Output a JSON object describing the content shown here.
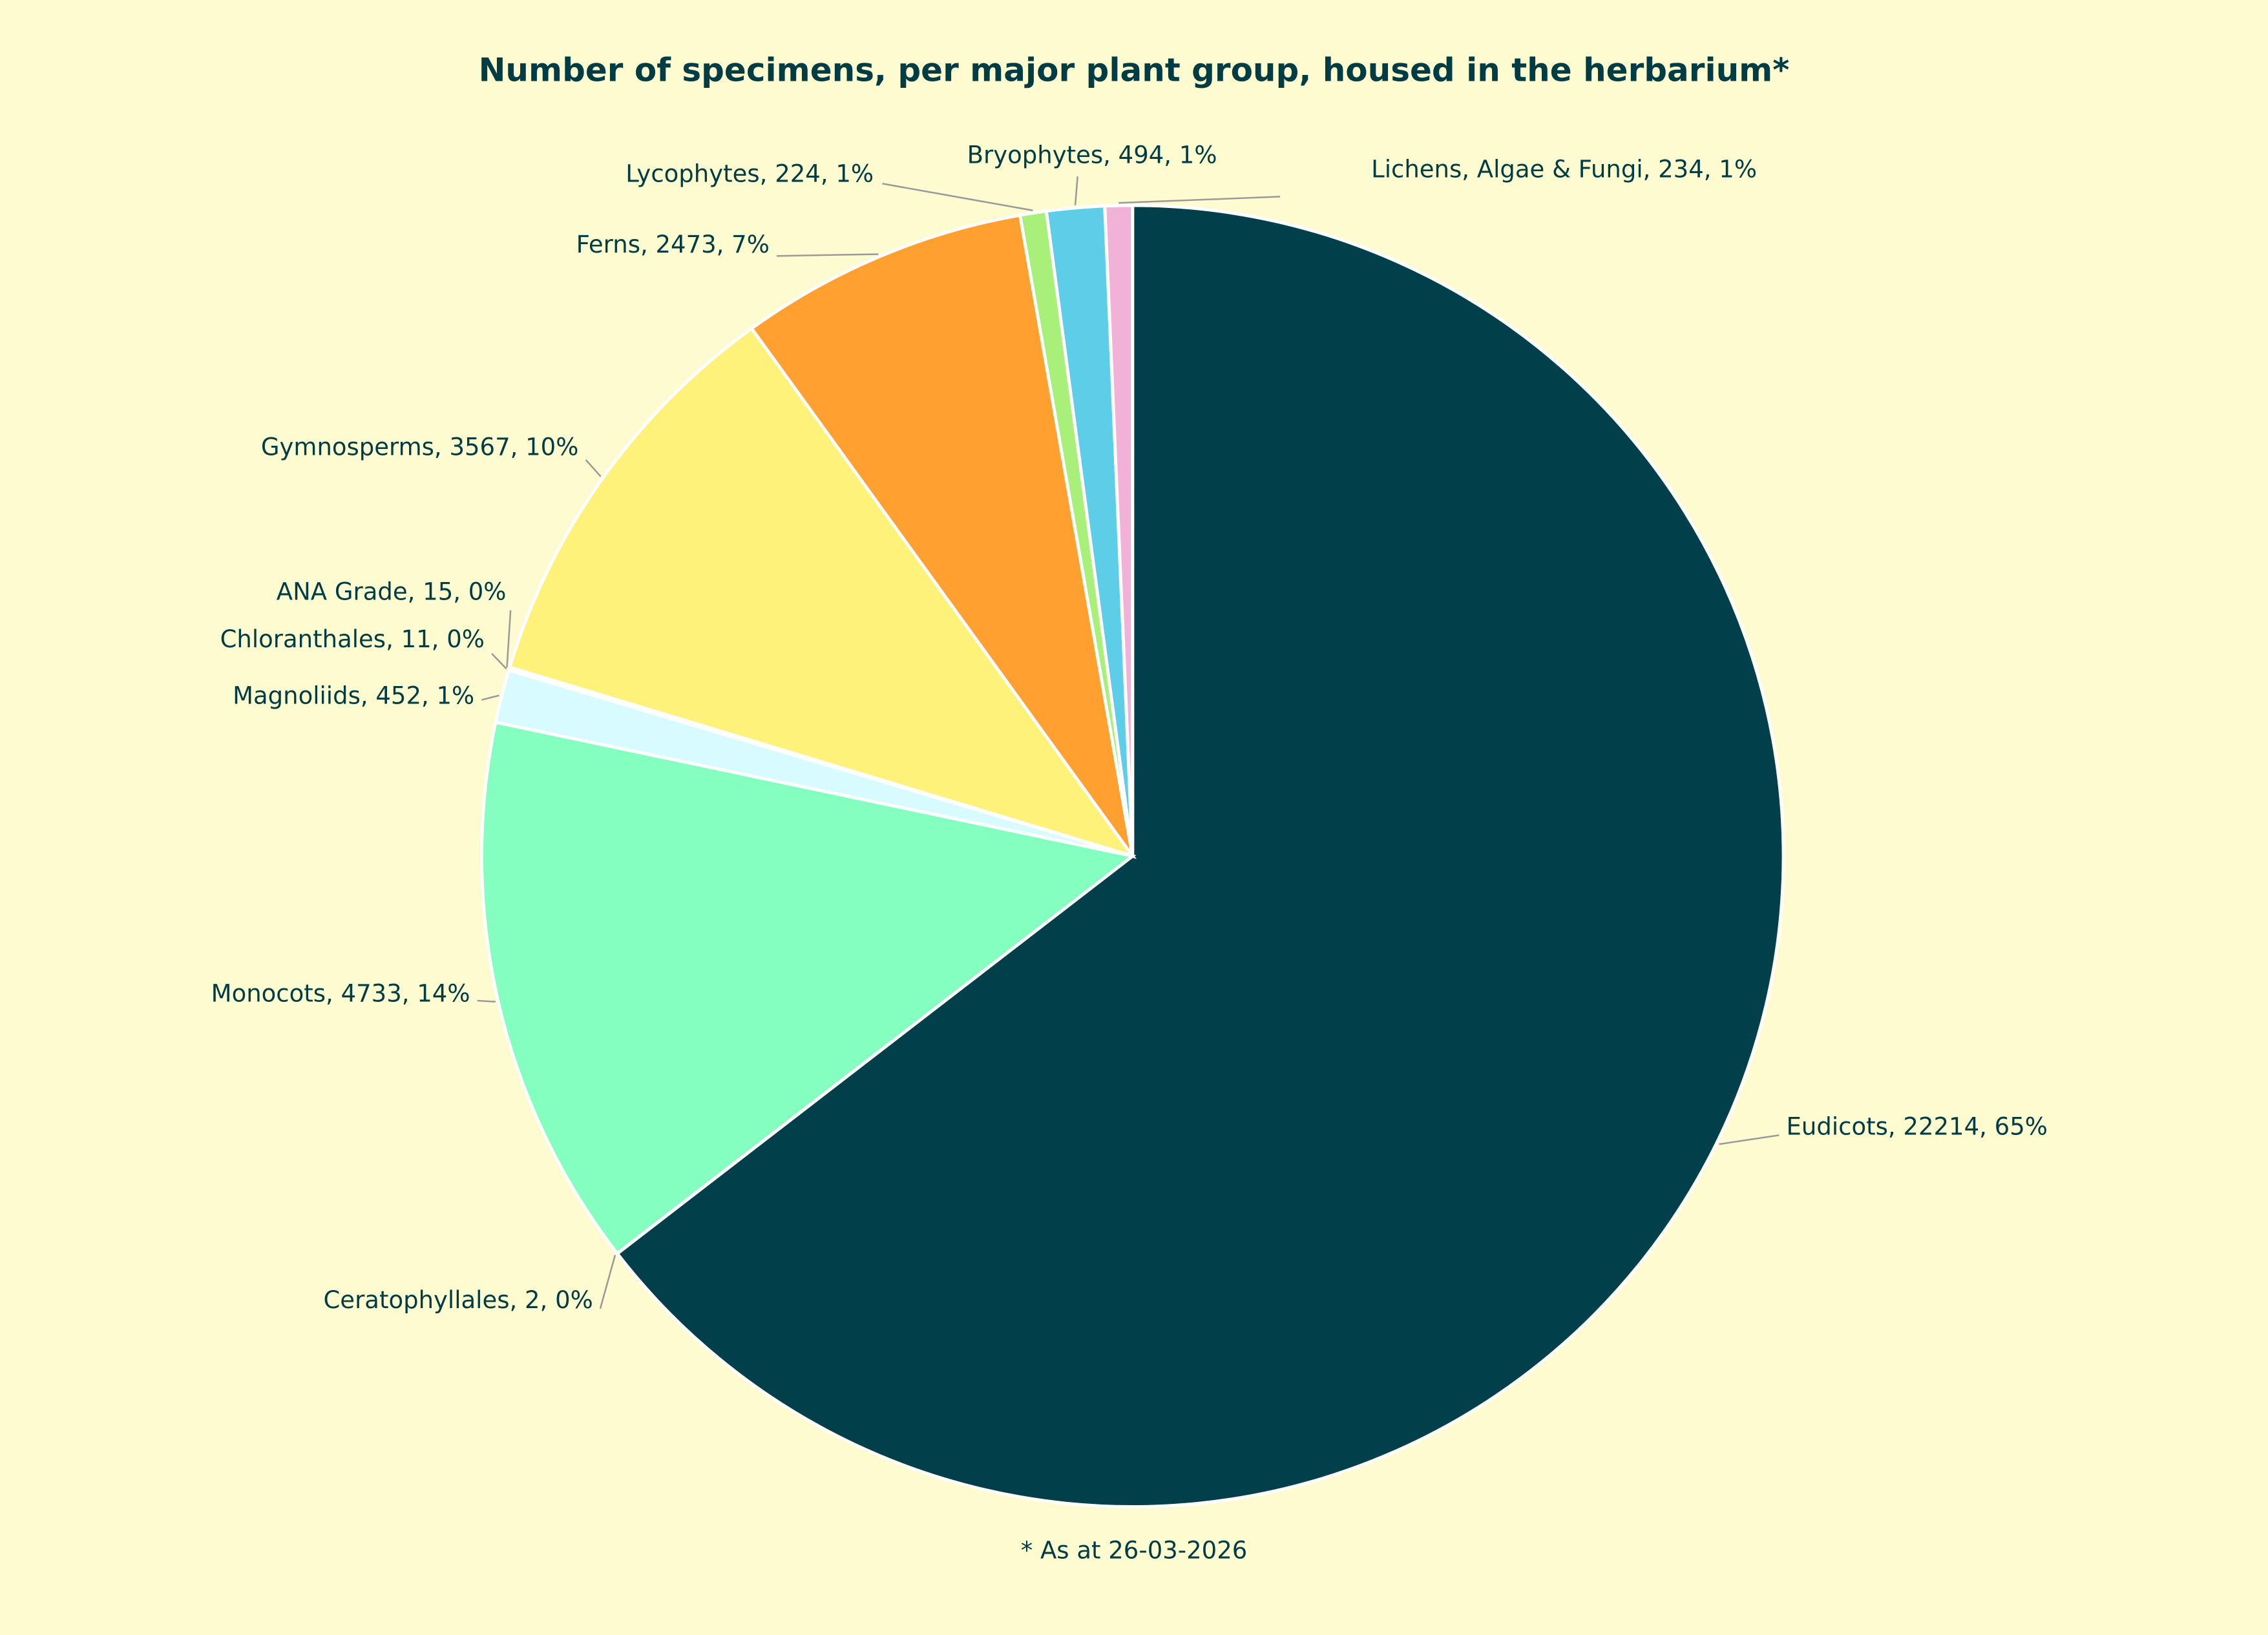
{
  "chart_data": {
    "type": "pie",
    "title": "Number of specimens, per major plant group, housed in the herbarium*",
    "footnote": "* As at 26-03-2026",
    "values": [
      22214,
      2,
      4733,
      452,
      11,
      15,
      3567,
      2473,
      224,
      494,
      234
    ],
    "value_labels": [
      "Eudicots, 22214, 65%",
      "Ceratophyllales, 2, 0%",
      "Monocots, 4733, 14%",
      "Magnoliids, 452, 1%",
      "Chloranthales, 11, 0%",
      "ANA Grade, 15, 0%",
      "Gymnosperms, 3567, 10%",
      "Ferns, 2473, 7%",
      "Lycophytes, 224, 1%",
      "Bryophytes, 494, 1%",
      "Lichens, Algae & Fungi, 234, 1%"
    ],
    "colors": [
      "#01404a",
      "#b8f0f0",
      "#84ffc0",
      "#d8fbff",
      "#c8e8ff",
      "#e0f0ff",
      "#fff27a",
      "#ffa030",
      "#a8f07a",
      "#5ecde8",
      "#f2b2d8"
    ]
  }
}
